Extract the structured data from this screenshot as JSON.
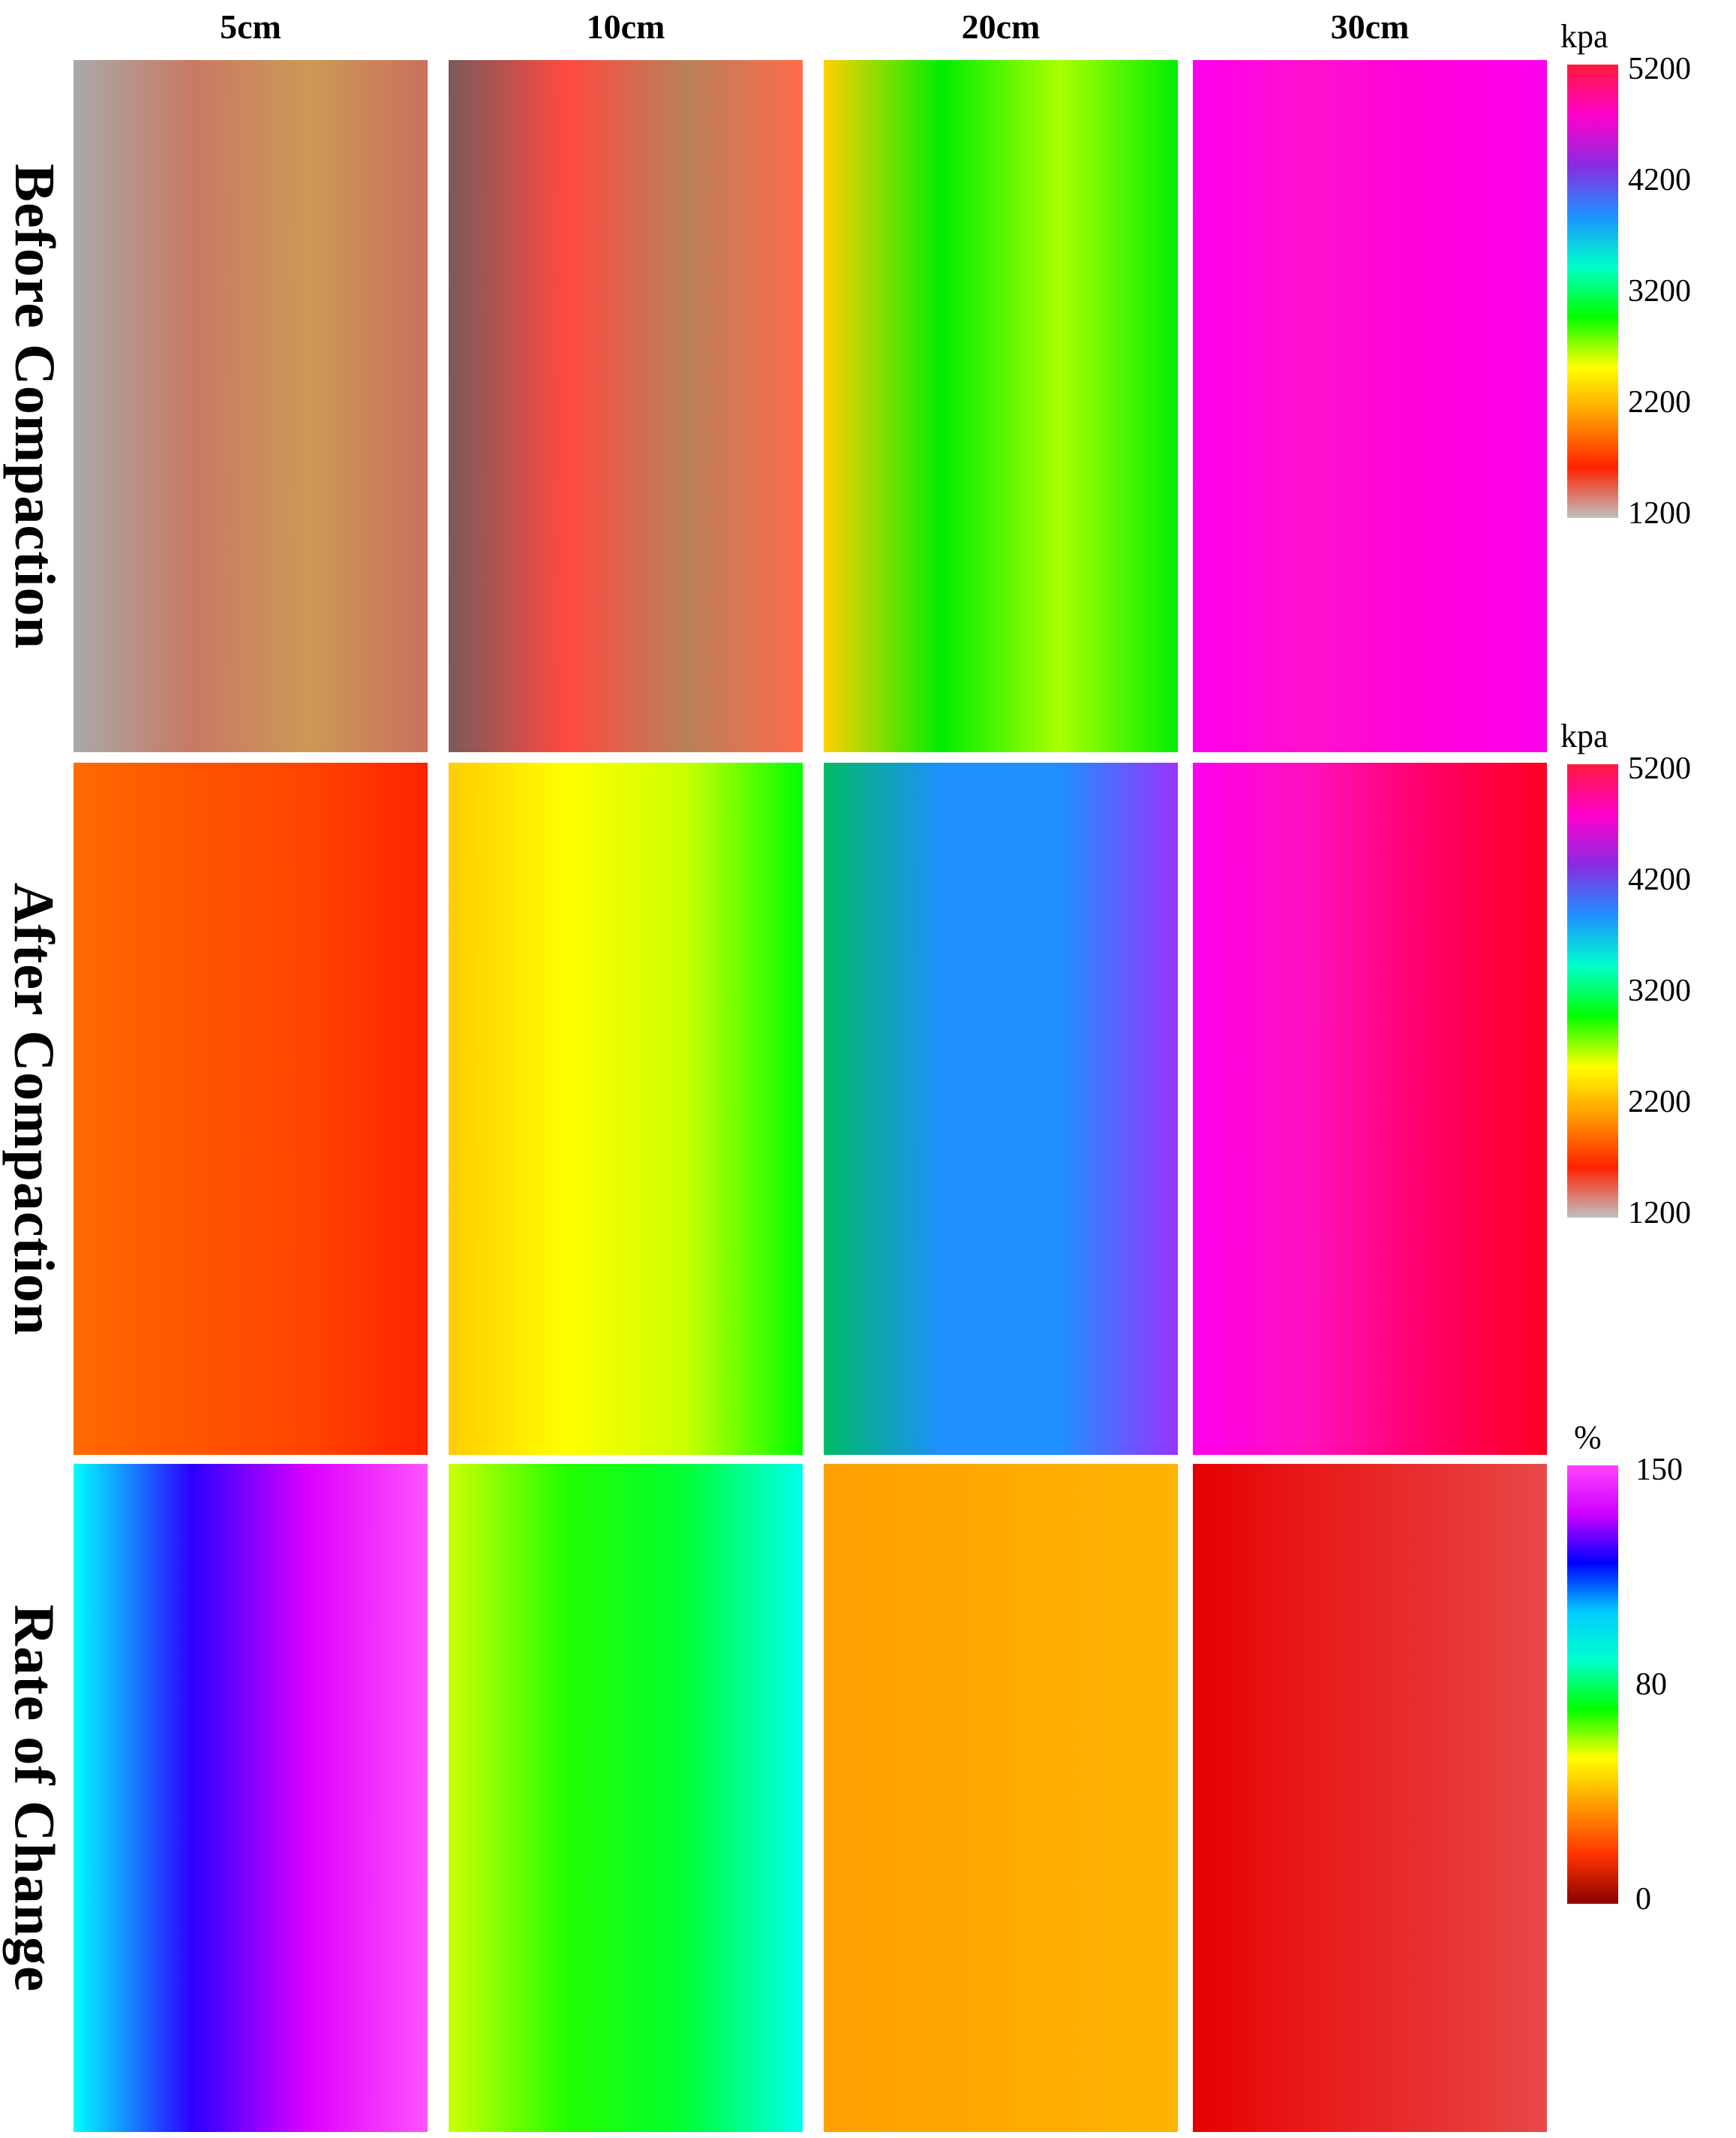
{
  "columns": [
    "5cm",
    "10cm",
    "20cm",
    "30cm"
  ],
  "rows": [
    "Before Compaction",
    "After Compaction",
    "Rate of Change"
  ],
  "colorbars": [
    {
      "unit": "kpa",
      "ticks": [
        "5200",
        "4200",
        "3200",
        "2200",
        "1200"
      ],
      "stops": [
        "#ff1a3c",
        "#ff00cc",
        "#8a2be2",
        "#1e90ff",
        "#00ffcc",
        "#00ff00",
        "#ffff00",
        "#ff9900",
        "#ff2200",
        "#c0c0c0"
      ]
    },
    {
      "unit": "kpa",
      "ticks": [
        "5200",
        "4200",
        "3200",
        "2200",
        "1200"
      ],
      "stops": [
        "#ff1a3c",
        "#ff00cc",
        "#8a2be2",
        "#1e90ff",
        "#00ffcc",
        "#00ff00",
        "#ffff00",
        "#ff9900",
        "#ff2200",
        "#c0c0c0"
      ]
    },
    {
      "unit": "%",
      "ticks": [
        "150",
        "80",
        "0"
      ],
      "stops": [
        "#ff44ff",
        "#cc00ff",
        "#0000ff",
        "#00ccff",
        "#00ffcc",
        "#00ff00",
        "#ffff00",
        "#ff9900",
        "#ff3300",
        "#8b0000"
      ]
    }
  ],
  "chart_data": {
    "type": "heatmap",
    "rows": [
      "Before Compaction",
      "After Compaction",
      "Rate of Change"
    ],
    "columns": [
      "5cm",
      "10cm",
      "20cm",
      "30cm"
    ],
    "units": [
      "kpa",
      "kpa",
      "%"
    ],
    "scale": [
      [
        1200,
        5200
      ],
      [
        1200,
        5200
      ],
      [
        0,
        150
      ]
    ],
    "cell_colors": [
      [
        [
          "#a9a9a9",
          "#c87a62",
          "#cc9955",
          "#c9715c"
        ],
        [
          "#7a5a5a",
          "#ff4a40",
          "#b8815a",
          "#ff6b4a"
        ],
        [
          "#ffd000",
          "#00ee00",
          "#aaff00",
          "#00ee00"
        ],
        [
          "#ff00ee",
          "#ff11cc",
          "#ff00dd",
          "#ff00ee"
        ]
      ],
      [
        [
          "#ff6a00",
          "#ff5500",
          "#ff4400",
          "#ff2200"
        ],
        [
          "#ffcc00",
          "#ffff00",
          "#ccff00",
          "#00ff00"
        ],
        [
          "#00bb66",
          "#1e90ff",
          "#1e90ff",
          "#9933ff"
        ],
        [
          "#ff00ee",
          "#ff11bb",
          "#ff0066",
          "#ff0022"
        ]
      ],
      [
        [
          "#00ffff",
          "#2b00ff",
          "#dd00ff",
          "#ff55ff"
        ],
        [
          "#ccff00",
          "#22ff00",
          "#00ff33",
          "#00ffee"
        ],
        [
          "#ff9f00",
          "#ffa500",
          "#ffae00",
          "#ffb400"
        ],
        [
          "#e60000",
          "#e81a1a",
          "#e83030",
          "#e84848"
        ]
      ]
    ]
  }
}
